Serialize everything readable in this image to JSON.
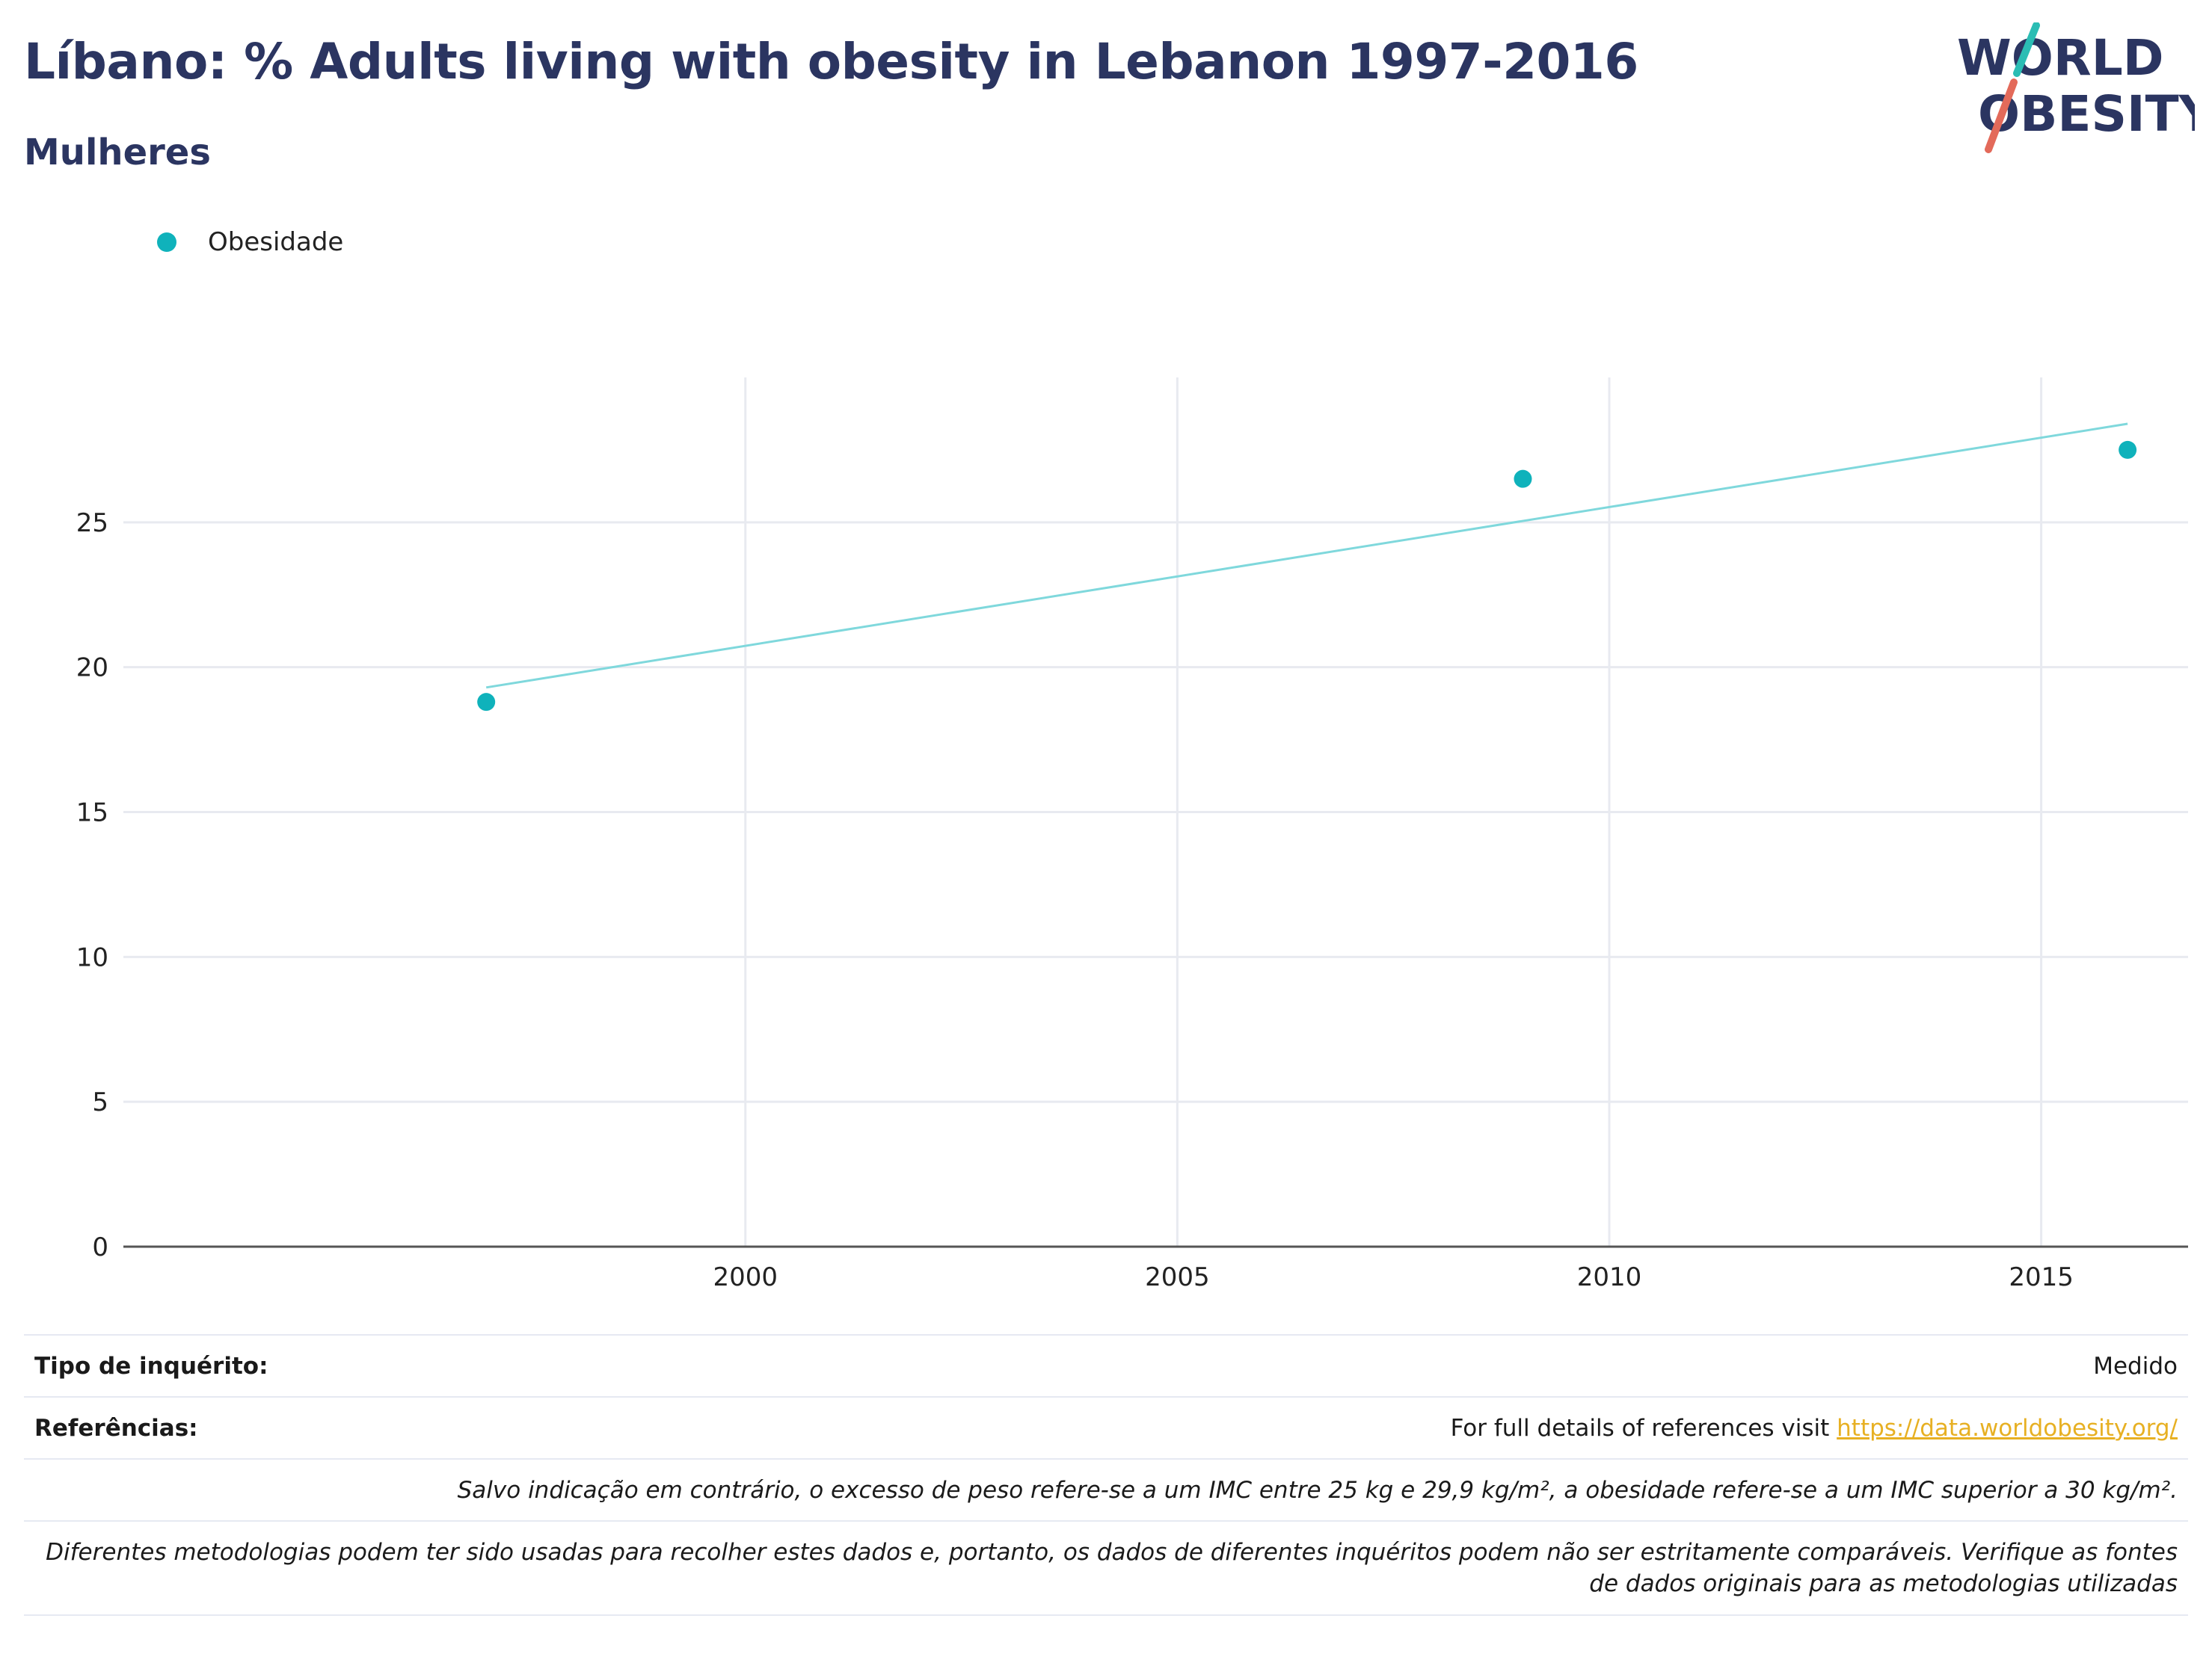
{
  "header": {
    "title": "Líbano: % Adults living with obesity in Lebanon 1997-2016",
    "subtitle": "Mulheres"
  },
  "logo": {
    "line1": "WORLD",
    "line2": "OBESITY"
  },
  "colors": {
    "series": "#0fb2bb",
    "trend": "#7fd8dc",
    "title": "#2b3561",
    "link": "#e7b023",
    "grid": "#e8eaf0",
    "logo_slash_teal": "#2bbdb4",
    "logo_slash_coral": "#e36a5a"
  },
  "legend": {
    "label": "Obesidade"
  },
  "chart_data": {
    "type": "scatter",
    "series": [
      {
        "name": "Obesidade",
        "x": [
          1997,
          2009,
          2016
        ],
        "y": [
          18.8,
          26.5,
          27.5
        ]
      }
    ],
    "trendline": {
      "x": [
        1997,
        2016
      ],
      "y": [
        19.3,
        28.4
      ]
    },
    "x_ticks": [
      2000,
      2005,
      2010,
      2015
    ],
    "y_ticks": [
      0,
      5,
      10,
      15,
      20,
      25
    ],
    "xlim": [
      1992.8,
      2016.7
    ],
    "ylim": [
      0,
      30
    ],
    "grid": true,
    "legend_position": "top-left"
  },
  "footer": {
    "survey_type_label": "Tipo de inquérito:",
    "survey_type_value": "Medido",
    "references_label": "Referências:",
    "references_text": "For full details of references visit ",
    "references_link": "https://data.worldobesity.org/",
    "note_bmi": "Salvo indicação em contrário, o excesso de peso refere-se a um IMC entre 25 kg e 29,9 kg/m², a obesidade refere-se a um IMC superior a 30 kg/m².",
    "note_methods_1": "Diferentes metodologias podem ter sido usadas para recolher estes dados e, portanto, os dados de diferentes inquéritos podem não ser estritamente comparáveis. Verifique as fontes",
    "note_methods_2": "de dados originais para as metodologias utilizadas"
  }
}
